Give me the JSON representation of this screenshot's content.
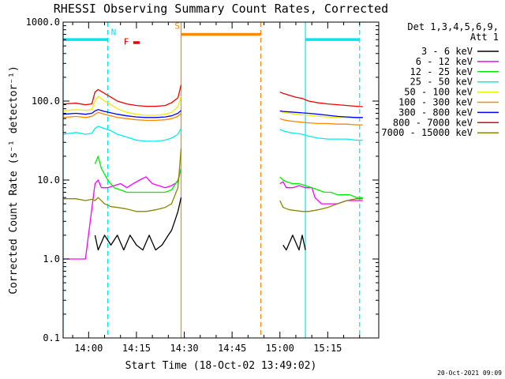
{
  "chart_data": {
    "type": "line",
    "title": "RHESSI Observing Summary Count Rates, Corrected",
    "xlabel": "Start Time (18-Oct-02 13:49:02)",
    "ylabel": "Corrected Count Rate (s⁻¹ detector⁻¹)",
    "yscale": "log",
    "ylim": [
      0.1,
      1000
    ],
    "xlim": [
      "13:52",
      "15:31"
    ],
    "x_ticks": [
      "14:00",
      "14:15",
      "14:30",
      "14:45",
      "15:00",
      "15:15"
    ],
    "y_ticks": [
      "0.1",
      "1.0",
      "10.0",
      "100.0",
      "1000.0"
    ],
    "legend_header": [
      "Det 1,3,4,5,6,9,",
      "Att 1"
    ],
    "legend_position": "right",
    "timestamp": "20-Oct-2021 09:09",
    "annotations": [
      {
        "text": "N",
        "color": "#00e5ee"
      },
      {
        "text": "F",
        "color": "#ee0000"
      },
      {
        "text": "S",
        "color": "#ff8800"
      }
    ],
    "bars": [
      {
        "label": "N",
        "color": "#00e5ee",
        "segments": [
          [
            "13:52",
            "14:06"
          ],
          [
            "15:08",
            "15:25"
          ]
        ],
        "level": 600
      },
      {
        "label": "F",
        "color": "#ee0000",
        "segments": [
          [
            "14:14",
            "14:16"
          ]
        ],
        "level": 550
      },
      {
        "label": "S",
        "color": "#ff8800",
        "segments": [
          [
            "14:29",
            "14:54"
          ]
        ],
        "level": 700
      }
    ],
    "vlines": [
      {
        "color": "#00e5ee",
        "style": "solid",
        "x": "13:52"
      },
      {
        "color": "#00e5ee",
        "style": "dashed",
        "x": "14:06"
      },
      {
        "color": "#00e5ee",
        "style": "solid",
        "x": "15:08"
      },
      {
        "color": "#00e5ee",
        "style": "dashed",
        "x": "15:25"
      },
      {
        "color": "#ff8800",
        "style": "solid",
        "x": "14:29"
      },
      {
        "color": "#ff8800",
        "style": "dashed",
        "x": "14:54"
      }
    ],
    "series": [
      {
        "name": "3 - 6 keV",
        "color": "#000000",
        "x": [
          "14:02",
          "14:03",
          "14:05",
          "14:07",
          "14:09",
          "14:11",
          "14:13",
          "14:15",
          "14:17",
          "14:19",
          "14:21",
          "14:23",
          "14:25",
          "14:26",
          "14:27",
          "14:28",
          "14:29",
          "15:01",
          "15:02",
          "15:04",
          "15:06",
          "15:07",
          "15:08"
        ],
        "y": [
          2,
          1.3,
          2,
          1.5,
          2,
          1.3,
          2,
          1.5,
          1.3,
          2,
          1.3,
          1.5,
          2,
          2.3,
          3,
          4,
          6,
          1.5,
          1.3,
          2,
          1.3,
          2,
          1.3
        ]
      },
      {
        "name": "6 - 12 keV",
        "color": "#ff00ff",
        "x": [
          "13:52",
          "13:59",
          "14:02",
          "14:03",
          "14:04",
          "14:06",
          "14:08",
          "14:10",
          "14:12",
          "14:14",
          "14:16",
          "14:18",
          "14:20",
          "14:22",
          "14:24",
          "14:26",
          "14:28",
          "14:29",
          "15:00",
          "15:01",
          "15:02",
          "15:04",
          "15:06",
          "15:08",
          "15:10",
          "15:11",
          "15:13",
          "15:15",
          "15:18",
          "15:21",
          "15:24",
          "15:26"
        ],
        "y": [
          1,
          1,
          9,
          10,
          8,
          8,
          8.5,
          9,
          8,
          9,
          10,
          11,
          9,
          8.5,
          8,
          8.5,
          9.5,
          14,
          9,
          9.5,
          8,
          8,
          8.5,
          8,
          8,
          6,
          5,
          5,
          5,
          5.5,
          5.5,
          5.5
        ]
      },
      {
        "name": "12 - 25 keV",
        "color": "#00ee00",
        "x": [
          "14:02",
          "14:03",
          "14:04",
          "14:06",
          "14:08",
          "14:10",
          "14:12",
          "14:14",
          "14:16",
          "14:18",
          "14:20",
          "14:22",
          "14:24",
          "14:26",
          "14:28",
          "14:29",
          "15:00",
          "15:01",
          "15:02",
          "15:04",
          "15:06",
          "15:08",
          "15:10",
          "15:12",
          "15:14",
          "15:16",
          "15:18",
          "15:20",
          "15:22",
          "15:24",
          "15:26"
        ],
        "y": [
          16,
          20,
          14,
          10,
          8,
          7.5,
          7,
          7,
          7,
          7,
          7,
          7,
          7,
          7.5,
          10,
          14,
          11,
          10,
          9.5,
          9,
          9,
          8.5,
          8,
          7.5,
          7,
          7,
          6.5,
          6.5,
          6.5,
          6,
          6
        ]
      },
      {
        "name": "25 - 50 keV",
        "color": "#00eeee",
        "x": [
          "13:52",
          "13:56",
          "13:59",
          "14:01",
          "14:02",
          "14:03",
          "14:05",
          "14:07",
          "14:09",
          "14:12",
          "14:15",
          "14:18",
          "14:21",
          "14:24",
          "14:26",
          "14:28",
          "14:29",
          "15:00",
          "15:01",
          "15:03",
          "15:05",
          "15:07",
          "15:09",
          "15:12",
          "15:15",
          "15:18",
          "15:21",
          "15:24",
          "15:26"
        ],
        "y": [
          38,
          40,
          38,
          39,
          45,
          48,
          45,
          42,
          38,
          35,
          32,
          31,
          31,
          32,
          34,
          38,
          45,
          44,
          42,
          40,
          39,
          38,
          36,
          34,
          33,
          33,
          33,
          32,
          32
        ]
      },
      {
        "name": "50 - 100 keV",
        "color": "#eeee00",
        "x": [
          "13:52",
          "13:56",
          "13:59",
          "14:01",
          "14:02",
          "14:03",
          "14:05",
          "14:07",
          "14:09",
          "14:12",
          "14:15",
          "14:18",
          "14:21",
          "14:24",
          "14:26",
          "14:28",
          "14:29",
          "15:00",
          "15:01",
          "15:03",
          "15:05",
          "15:07",
          "15:09",
          "15:12",
          "15:15",
          "15:18",
          "15:21",
          "15:24",
          "15:26"
        ],
        "y": [
          75,
          78,
          76,
          78,
          100,
          115,
          100,
          90,
          80,
          72,
          68,
          66,
          66,
          68,
          72,
          85,
          115,
          75,
          72,
          70,
          68,
          67,
          66,
          64,
          63,
          62,
          62,
          61,
          61
        ]
      },
      {
        "name": "100 - 300 keV",
        "color": "#ff8800",
        "x": [
          "13:52",
          "13:56",
          "13:59",
          "14:01",
          "14:02",
          "14:03",
          "14:05",
          "14:07",
          "14:09",
          "14:12",
          "14:15",
          "14:18",
          "14:21",
          "14:24",
          "14:26",
          "14:28",
          "14:29",
          "15:00",
          "15:01",
          "15:03",
          "15:05",
          "15:07",
          "15:09",
          "15:12",
          "15:15",
          "15:18",
          "15:21",
          "15:24",
          "15:26"
        ],
        "y": [
          62,
          64,
          62,
          64,
          68,
          72,
          68,
          65,
          62,
          60,
          58,
          57,
          57,
          58,
          60,
          64,
          70,
          60,
          58,
          56,
          55,
          54,
          53,
          52,
          52,
          51,
          51,
          50,
          50
        ]
      },
      {
        "name": "300 - 800 keV",
        "color": "#0000ff",
        "x": [
          "13:52",
          "13:56",
          "13:59",
          "14:01",
          "14:02",
          "14:03",
          "14:05",
          "14:07",
          "14:09",
          "14:12",
          "14:15",
          "14:18",
          "14:21",
          "14:24",
          "14:26",
          "14:28",
          "14:29",
          "15:00",
          "15:01",
          "15:03",
          "15:05",
          "15:07",
          "15:09",
          "15:12",
          "15:15",
          "15:18",
          "15:21",
          "15:24",
          "15:26"
        ],
        "y": [
          68,
          70,
          68,
          70,
          75,
          78,
          74,
          71,
          68,
          65,
          63,
          62,
          62,
          63,
          65,
          70,
          76,
          75,
          74,
          73,
          72,
          71,
          70,
          68,
          66,
          64,
          63,
          62,
          62
        ]
      },
      {
        "name": "800 - 7000 keV",
        "color": "#ee0000",
        "x": [
          "13:52",
          "13:56",
          "13:59",
          "14:01",
          "14:02",
          "14:03",
          "14:05",
          "14:07",
          "14:09",
          "14:12",
          "14:15",
          "14:18",
          "14:21",
          "14:24",
          "14:26",
          "14:28",
          "14:29",
          "15:00",
          "15:01",
          "15:03",
          "15:05",
          "15:07",
          "15:09",
          "15:12",
          "15:15",
          "15:18",
          "15:21",
          "15:24",
          "15:26"
        ],
        "y": [
          92,
          94,
          90,
          92,
          130,
          140,
          125,
          112,
          100,
          92,
          88,
          86,
          86,
          88,
          95,
          110,
          160,
          130,
          125,
          118,
          112,
          108,
          100,
          95,
          92,
          90,
          88,
          86,
          85
        ]
      },
      {
        "name": "7000 - 15000 keV",
        "color": "#888800",
        "x": [
          "13:52",
          "13:56",
          "13:59",
          "14:01",
          "14:02",
          "14:03",
          "14:05",
          "14:07",
          "14:09",
          "14:12",
          "14:15",
          "14:18",
          "14:21",
          "14:24",
          "14:26",
          "14:28",
          "14:29",
          "15:00",
          "15:01",
          "15:03",
          "15:05",
          "15:07",
          "15:09",
          "15:12",
          "15:15",
          "15:18",
          "15:21",
          "15:24",
          "15:26"
        ],
        "y": [
          5.8,
          5.8,
          5.5,
          5.7,
          5.5,
          6,
          5,
          4.6,
          4.5,
          4.3,
          4,
          4,
          4.2,
          4.5,
          5,
          8,
          25,
          5.5,
          4.5,
          4.2,
          4.1,
          4,
          4,
          4.2,
          4.5,
          5,
          5.5,
          5.8,
          5.8
        ]
      }
    ]
  }
}
